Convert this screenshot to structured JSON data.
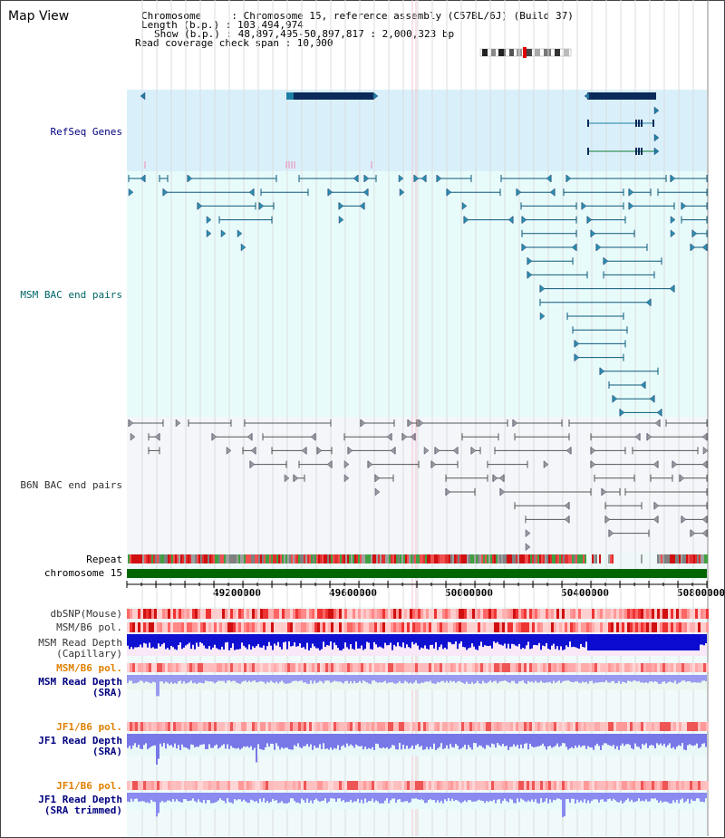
{
  "app": {
    "title": "Map View"
  },
  "header": {
    "chromosome_line": "Chromosome     : Chromosome 15, reference assembly (C57BL/6J) (Build 37)",
    "length_line": "Length (b.p.) : 103,494,974",
    "show_line": "Show (b.p.) : 48,897,495-50,897,817 : 2,000,323 bp",
    "coverage_line": "Read coverage check span : 10,000"
  },
  "tracks": {
    "refseq": "RefSeq Genes",
    "msm_bac": "MSM BAC end pairs",
    "b6n_bac": "B6N BAC end pairs",
    "repeat": "Repeat",
    "chromosome": "chromosome 15",
    "dbsnp": "dbSNP(Mouse)",
    "msm_b6_pol": "MSM/B6 pol.",
    "msm_depth_cap_1": "MSM Read Depth",
    "msm_depth_cap_2": "(Capillary)",
    "msm_b6_pol_2": "MSM/B6 pol.",
    "msm_depth_sra_1": "MSM Read Depth",
    "msm_depth_sra_2": "(SRA)",
    "jf1_b6_pol": "JF1/B6 pol.",
    "jf1_depth_sra_1": "JF1 Read Depth",
    "jf1_depth_sra_2": "(SRA)",
    "jf1_b6_pol_2": "JF1/B6 pol.",
    "jf1_depth_trim_1": "JF1 Read Depth",
    "jf1_depth_trim_2": "(SRA trimmed)"
  },
  "axis": {
    "ticks": [
      "49200000",
      "49600000",
      "50000000",
      "50400000",
      "50800000"
    ]
  },
  "colors": {
    "refseq_bg": "#d9f0fb",
    "msm_bg": "#e8fbfb",
    "b6n_bg": "#f4f6fa",
    "gene": "#0a2a5a",
    "msm_line": "#0a5a7a",
    "b6n_line": "#555555",
    "chrom_bar": "#006600",
    "label_navy": "#00007f",
    "label_teal": "#006666",
    "label_gray": "#333333",
    "label_orange": "#e08000"
  }
}
